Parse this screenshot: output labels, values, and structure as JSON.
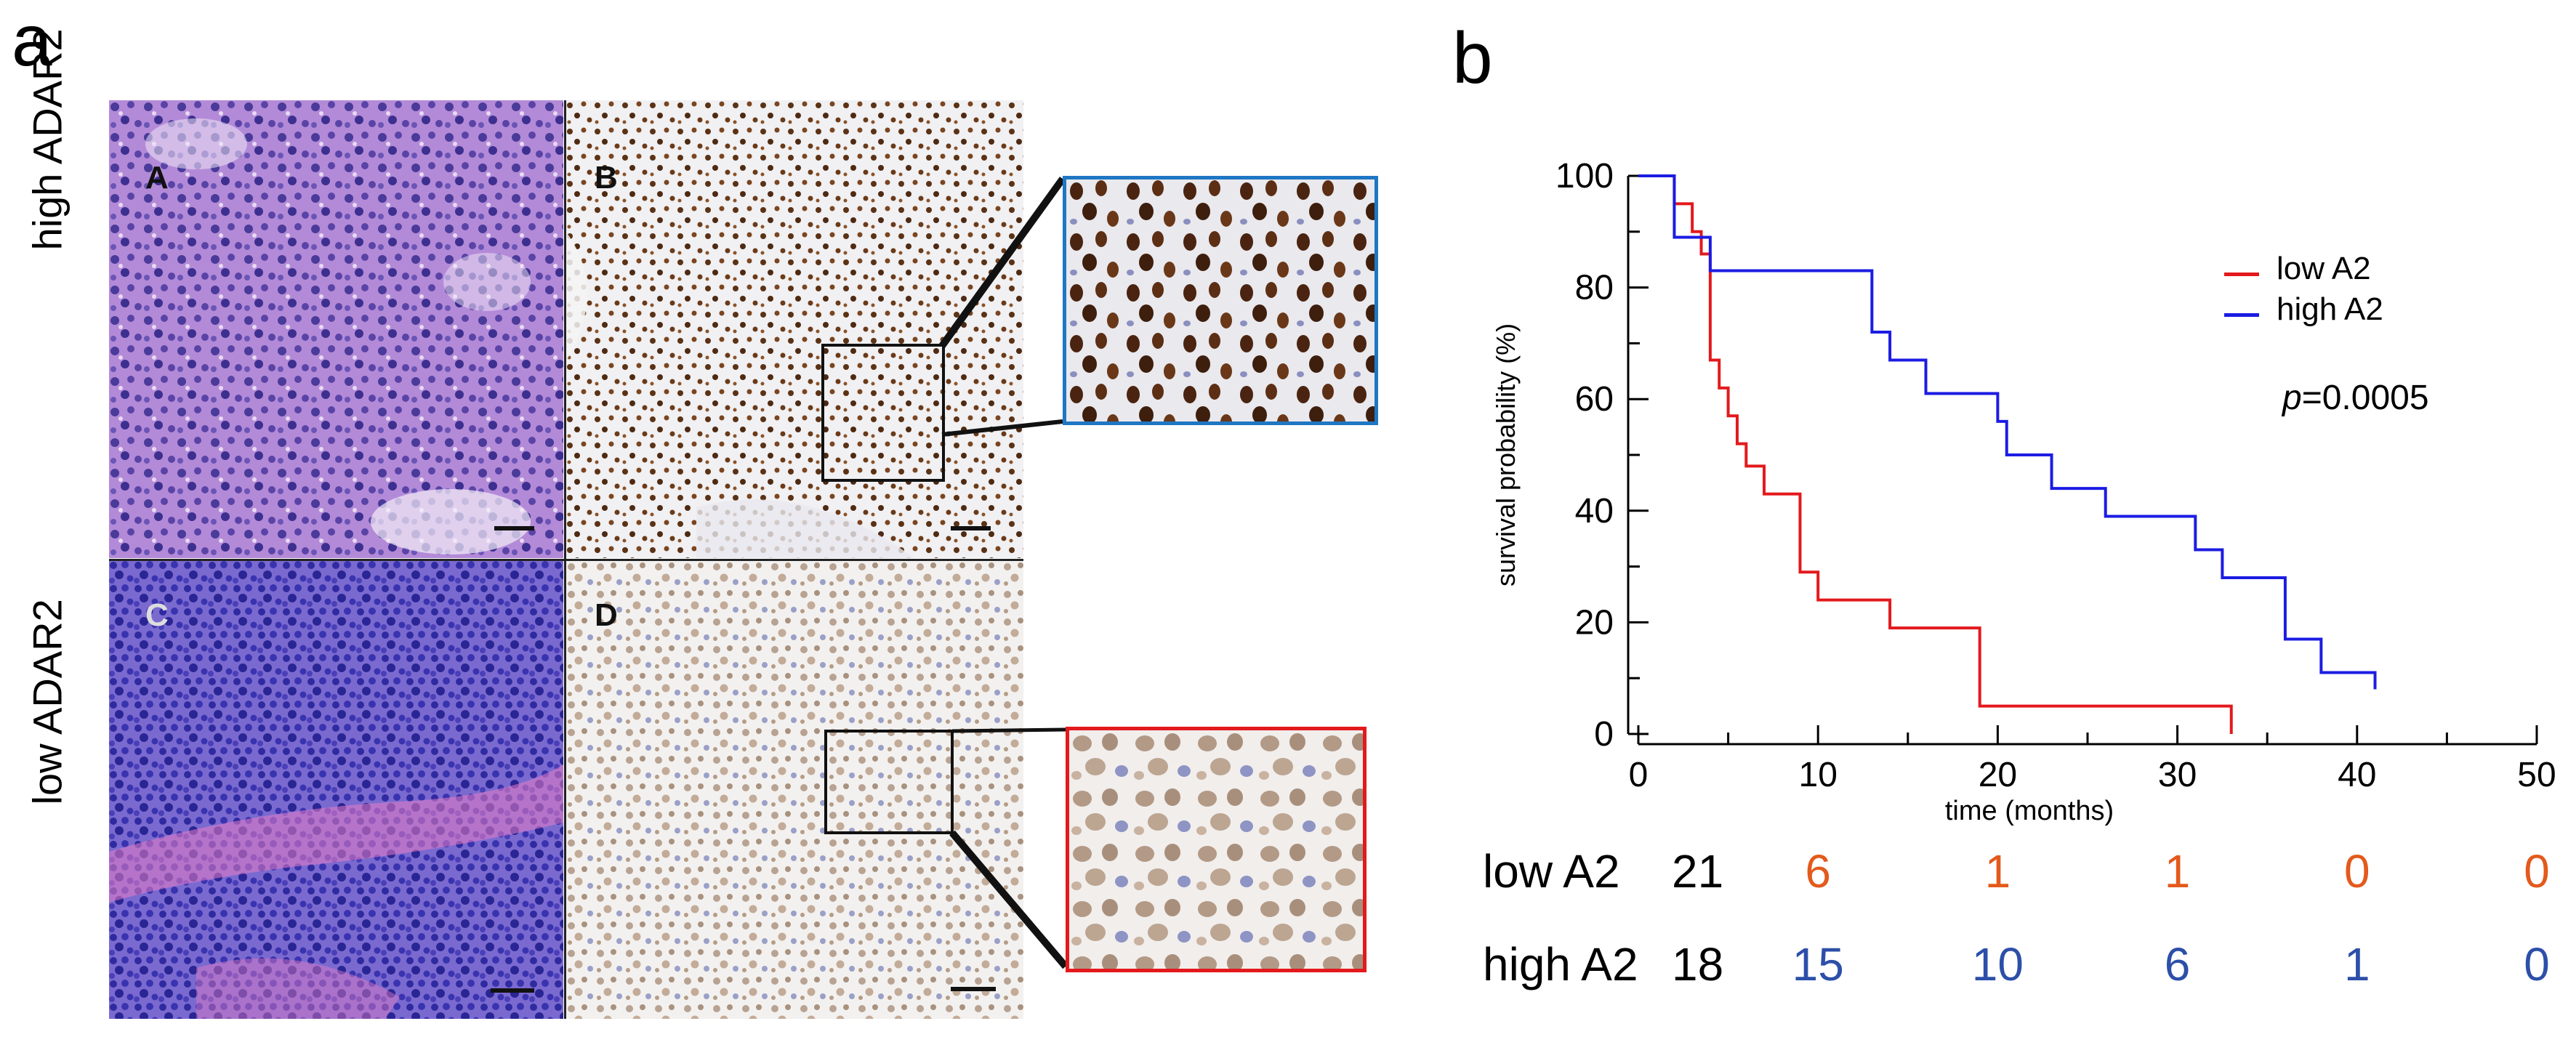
{
  "figure": {
    "panel_a": {
      "letter": "a",
      "row_labels": {
        "high": "high ADAR2",
        "low": "low ADAR2"
      },
      "subpanels": [
        {
          "letter": "A",
          "stain": "H&E"
        },
        {
          "letter": "B",
          "stain": "ADAR2 IHC"
        },
        {
          "letter": "C",
          "stain": "H&E"
        },
        {
          "letter": "D",
          "stain": "ADAR2 IHC"
        }
      ],
      "inset_colors": {
        "high": "#1f77c4",
        "low": "#e3191c"
      }
    },
    "panel_b": {
      "letter": "b"
    }
  },
  "chart_data": {
    "type": "line",
    "title": "",
    "xlabel": "time (months)",
    "ylabel": "survival probability (%)",
    "xlim": [
      0,
      50
    ],
    "ylim": [
      0,
      100
    ],
    "xticks": [
      0,
      10,
      20,
      30,
      40,
      50
    ],
    "yticks": [
      0,
      20,
      40,
      60,
      80,
      100
    ],
    "annotation": {
      "italic": "p",
      "text": "=0.0005"
    },
    "series": [
      {
        "name": "low A2",
        "color": "#e3191c",
        "x": [
          0,
          2,
          3,
          3.5,
          4,
          4.5,
          5,
          5.5,
          6,
          7,
          9,
          10,
          14,
          19,
          33
        ],
        "y": [
          100,
          95,
          90,
          86,
          67,
          62,
          57,
          52,
          48,
          43,
          29,
          24,
          19,
          5,
          0
        ]
      },
      {
        "name": "high A2",
        "color": "#1c1ce3",
        "x": [
          0,
          2,
          4,
          13,
          14,
          16,
          20,
          20.5,
          23,
          26,
          31,
          32.5,
          36,
          38,
          41
        ],
        "y": [
          100,
          89,
          83,
          72,
          67,
          61,
          56,
          50,
          44,
          39,
          33,
          28,
          17,
          11,
          8
        ]
      }
    ],
    "risk_table": {
      "times": [
        10,
        20,
        30,
        40,
        50
      ],
      "rows": [
        {
          "label": "low A2",
          "n0": "21",
          "counts": [
            "6",
            "1",
            "1",
            "0",
            "0"
          ],
          "color": "#e35a1c"
        },
        {
          "label": "high A2",
          "n0": "18",
          "counts": [
            "15",
            "10",
            "6",
            "1",
            "0"
          ],
          "color": "#2c4fa8"
        }
      ]
    }
  }
}
